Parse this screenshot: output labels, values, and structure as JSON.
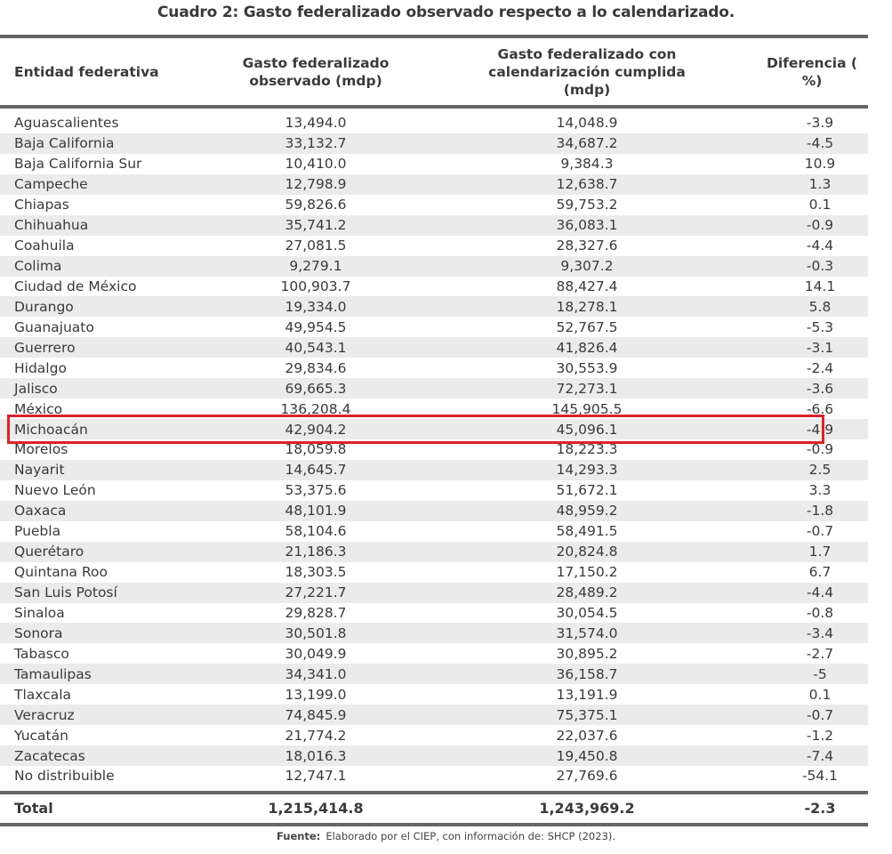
{
  "title": "Cuadro 2: Gasto federalizado observado respecto a lo calendarizado.",
  "headers": {
    "entity": "Entidad federativa",
    "observed_l1": "Gasto federalizado",
    "observed_l2": "observado (mdp)",
    "scheduled_l1": "Gasto federalizado con",
    "scheduled_l2": "calendarización cumplida",
    "scheduled_l3": "(mdp)",
    "diff": "Diferencia ( %)"
  },
  "rows": [
    [
      "Aguascalientes",
      "13,494.0",
      "14,048.9",
      "-3.9"
    ],
    [
      "Baja California",
      "33,132.7",
      "34,687.2",
      "-4.5"
    ],
    [
      "Baja California Sur",
      "10,410.0",
      "9,384.3",
      "10.9"
    ],
    [
      "Campeche",
      "12,798.9",
      "12,638.7",
      "1.3"
    ],
    [
      "Chiapas",
      "59,826.6",
      "59,753.2",
      "0.1"
    ],
    [
      "Chihuahua",
      "35,741.2",
      "36,083.1",
      "-0.9"
    ],
    [
      "Coahuila",
      "27,081.5",
      "28,327.6",
      "-4.4"
    ],
    [
      "Colima",
      "9,279.1",
      "9,307.2",
      "-0.3"
    ],
    [
      "Ciudad de México",
      "100,903.7",
      "88,427.4",
      "14.1"
    ],
    [
      "Durango",
      "19,334.0",
      "18,278.1",
      "5.8"
    ],
    [
      "Guanajuato",
      "49,954.5",
      "52,767.5",
      "-5.3"
    ],
    [
      "Guerrero",
      "40,543.1",
      "41,826.4",
      "-3.1"
    ],
    [
      "Hidalgo",
      "29,834.6",
      "30,553.9",
      "-2.4"
    ],
    [
      "Jalisco",
      "69,665.3",
      "72,273.1",
      "-3.6"
    ],
    [
      "México",
      "136,208.4",
      "145,905.5",
      "-6.6"
    ],
    [
      "Michoacán",
      "42,904.2",
      "45,096.1",
      "-4.9"
    ],
    [
      "Morelos",
      "18,059.8",
      "18,223.3",
      "-0.9"
    ],
    [
      "Nayarit",
      "14,645.7",
      "14,293.3",
      "2.5"
    ],
    [
      "Nuevo León",
      "53,375.6",
      "51,672.1",
      "3.3"
    ],
    [
      "Oaxaca",
      "48,101.9",
      "48,959.2",
      "-1.8"
    ],
    [
      "Puebla",
      "58,104.6",
      "58,491.5",
      "-0.7"
    ],
    [
      "Querétaro",
      "21,186.3",
      "20,824.8",
      "1.7"
    ],
    [
      "Quintana Roo",
      "18,303.5",
      "17,150.2",
      "6.7"
    ],
    [
      "San Luis Potosí",
      "27,221.7",
      "28,489.2",
      "-4.4"
    ],
    [
      "Sinaloa",
      "29,828.7",
      "30,054.5",
      "-0.8"
    ],
    [
      "Sonora",
      "30,501.8",
      "31,574.0",
      "-3.4"
    ],
    [
      "Tabasco",
      "30,049.9",
      "30,895.2",
      "-2.7"
    ],
    [
      "Tamaulipas",
      "34,341.0",
      "36,158.7",
      "-5"
    ],
    [
      "Tlaxcala",
      "13,199.0",
      "13,191.9",
      "0.1"
    ],
    [
      "Veracruz",
      "74,845.9",
      "75,375.1",
      "-0.7"
    ],
    [
      "Yucatán",
      "21,774.2",
      "22,037.6",
      "-1.2"
    ],
    [
      "Zacatecas",
      "18,016.3",
      "19,450.8",
      "-7.4"
    ],
    [
      "No distribuible",
      "12,747.1",
      "27,769.6",
      "-54.1"
    ]
  ],
  "highlighted_row": "Michoacán",
  "highlight_color": "#d8232a",
  "total": {
    "label": "Total",
    "observed": "1,215,414.8",
    "scheduled": "1,243,969.2",
    "diff": "-2.3"
  },
  "footnote": {
    "label": "Fuente:",
    "text": "Elaborado por el CIEP, con información de: SHCP (2023)."
  }
}
